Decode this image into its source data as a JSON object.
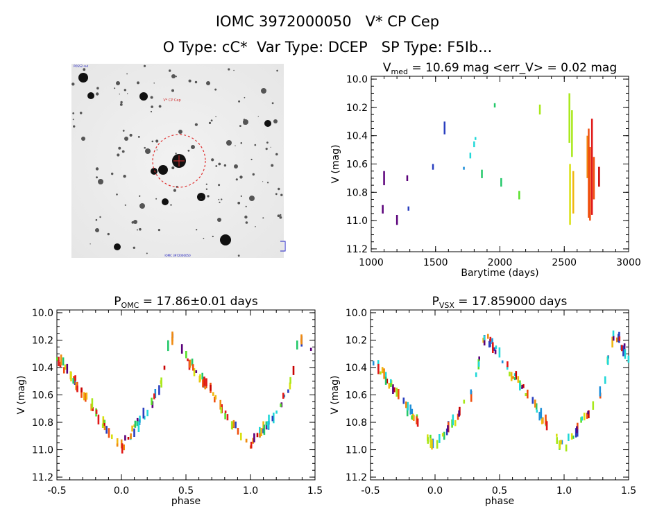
{
  "header": {
    "title_line1": "IOMC 3972000050   V* CP Cep",
    "title_line2": "O Type: cC*  Var Type: DCEP   SP Type: F5Ib..."
  },
  "colors": {
    "palette": [
      "#5a007a",
      "#2a3fbf",
      "#1f8fd8",
      "#22d8d8",
      "#24c86a",
      "#58e02a",
      "#a8e81a",
      "#d8e010",
      "#f0b810",
      "#f08a10",
      "#f05010",
      "#e01818",
      "#c80000"
    ]
  },
  "image_panel": {
    "marker_label": "V* CP Cep",
    "corner_label_top_left": "POSS2 red",
    "corner_label_bottom_center": "IOMC 3972000050"
  },
  "chart_data": [
    {
      "id": "lightcurve",
      "type": "scatter",
      "title": "V_med = 10.69 mag <err_V> = 0.02 mag",
      "title_parts": {
        "main": "V",
        "sub": "med",
        "rest": " = 10.69 mag <err_V> = 0.02 mag"
      },
      "xlabel": "Barytime (days)",
      "ylabel": "V (mag)",
      "xlim": [
        1000,
        3000
      ],
      "ylim": [
        11.22,
        9.98
      ],
      "y_inverted": true,
      "xticks": [
        1000,
        1500,
        2000,
        2500,
        3000
      ],
      "xticklabels": [
        "1000",
        "1500",
        "2000",
        "2500",
        "3000"
      ],
      "yticks": [
        10.0,
        10.2,
        10.4,
        10.6,
        10.8,
        11.0,
        11.2
      ],
      "yticklabels": [
        "10.0",
        "10.2",
        "10.4",
        "10.6",
        "10.8",
        "11.0",
        "11.2"
      ],
      "segments": [
        {
          "x": 1090,
          "y1": 10.89,
          "y2": 10.95,
          "c": 0
        },
        {
          "x": 1100,
          "y1": 10.65,
          "y2": 10.75,
          "c": 0
        },
        {
          "x": 1200,
          "y1": 10.96,
          "y2": 11.03,
          "c": 0
        },
        {
          "x": 1280,
          "y1": 10.68,
          "y2": 10.72,
          "c": 0
        },
        {
          "x": 1290,
          "y1": 10.9,
          "y2": 10.93,
          "c": 1
        },
        {
          "x": 1480,
          "y1": 10.6,
          "y2": 10.64,
          "c": 1
        },
        {
          "x": 1570,
          "y1": 10.3,
          "y2": 10.39,
          "c": 1
        },
        {
          "x": 1720,
          "y1": 10.62,
          "y2": 10.64,
          "c": 2
        },
        {
          "x": 1770,
          "y1": 10.52,
          "y2": 10.56,
          "c": 3
        },
        {
          "x": 1800,
          "y1": 10.44,
          "y2": 10.48,
          "c": 3
        },
        {
          "x": 1810,
          "y1": 10.41,
          "y2": 10.43,
          "c": 3
        },
        {
          "x": 1860,
          "y1": 10.64,
          "y2": 10.7,
          "c": 4
        },
        {
          "x": 1960,
          "y1": 10.17,
          "y2": 10.2,
          "c": 4
        },
        {
          "x": 2010,
          "y1": 10.7,
          "y2": 10.76,
          "c": 4
        },
        {
          "x": 2150,
          "y1": 10.79,
          "y2": 10.85,
          "c": 5
        },
        {
          "x": 2310,
          "y1": 10.18,
          "y2": 10.25,
          "c": 6
        },
        {
          "x": 2540,
          "y1": 10.1,
          "y2": 10.45,
          "c": 6
        },
        {
          "x": 2545,
          "y1": 10.6,
          "y2": 11.03,
          "c": 7
        },
        {
          "x": 2560,
          "y1": 10.22,
          "y2": 10.55,
          "c": 6
        },
        {
          "x": 2570,
          "y1": 10.65,
          "y2": 10.95,
          "c": 8
        },
        {
          "x": 2680,
          "y1": 10.4,
          "y2": 10.7,
          "c": 9
        },
        {
          "x": 2690,
          "y1": 10.35,
          "y2": 10.98,
          "c": 10
        },
        {
          "x": 2700,
          "y1": 10.48,
          "y2": 11.0,
          "c": 10
        },
        {
          "x": 2715,
          "y1": 10.28,
          "y2": 10.96,
          "c": 11
        },
        {
          "x": 2730,
          "y1": 10.55,
          "y2": 10.85,
          "c": 10
        },
        {
          "x": 2770,
          "y1": 10.62,
          "y2": 10.76,
          "c": 12
        }
      ]
    },
    {
      "id": "phase-omc",
      "type": "scatter",
      "title": "P_OMC = 17.86±0.01 days",
      "title_parts": {
        "main": "P",
        "sub": "OMC",
        "rest": " = 17.86±0.01 days"
      },
      "xlabel": "phase",
      "ylabel": "V (mag)",
      "xlim": [
        -0.5,
        1.5
      ],
      "ylim": [
        11.22,
        9.98
      ],
      "y_inverted": true,
      "xticks": [
        -0.5,
        0.0,
        0.5,
        1.0,
        1.5
      ],
      "xticklabels": [
        "-0.5",
        "0.0",
        "0.5",
        "1.0",
        "1.5"
      ],
      "yticks": [
        10.0,
        10.2,
        10.4,
        10.6,
        10.8,
        11.0,
        11.2
      ],
      "yticklabels": [
        "10.0",
        "10.2",
        "10.4",
        "10.6",
        "10.8",
        "11.0",
        "11.2"
      ],
      "curve_phase": [
        0.0,
        0.1,
        0.2,
        0.3,
        0.38,
        0.42,
        0.5,
        0.6,
        0.7,
        0.8,
        0.9,
        1.0
      ],
      "curve_mag": [
        10.98,
        10.85,
        10.72,
        10.55,
        10.17,
        10.2,
        10.32,
        10.45,
        10.58,
        10.72,
        10.86,
        10.98
      ]
    },
    {
      "id": "phase-vsx",
      "type": "scatter",
      "title": "P_VSX = 17.859000 days",
      "title_parts": {
        "main": "P",
        "sub": "VSX",
        "rest": " = 17.859000 days"
      },
      "xlabel": "phase",
      "ylabel": "V (mag)",
      "xlim": [
        -0.5,
        1.5
      ],
      "ylim": [
        11.22,
        9.98
      ],
      "y_inverted": true,
      "xticks": [
        -0.5,
        0.0,
        0.5,
        1.0,
        1.5
      ],
      "xticklabels": [
        "-0.5",
        "0.0",
        "0.5",
        "1.0",
        "1.5"
      ],
      "yticks": [
        10.0,
        10.2,
        10.4,
        10.6,
        10.8,
        11.0,
        11.2
      ],
      "yticklabels": [
        "10.0",
        "10.2",
        "10.4",
        "10.6",
        "10.8",
        "11.0",
        "11.2"
      ],
      "curve_phase": [
        0.0,
        0.1,
        0.2,
        0.3,
        0.38,
        0.42,
        0.5,
        0.6,
        0.7,
        0.8,
        0.9,
        1.0
      ],
      "curve_mag": [
        10.98,
        10.85,
        10.72,
        10.55,
        10.17,
        10.2,
        10.32,
        10.45,
        10.58,
        10.72,
        10.86,
        10.98
      ]
    }
  ]
}
